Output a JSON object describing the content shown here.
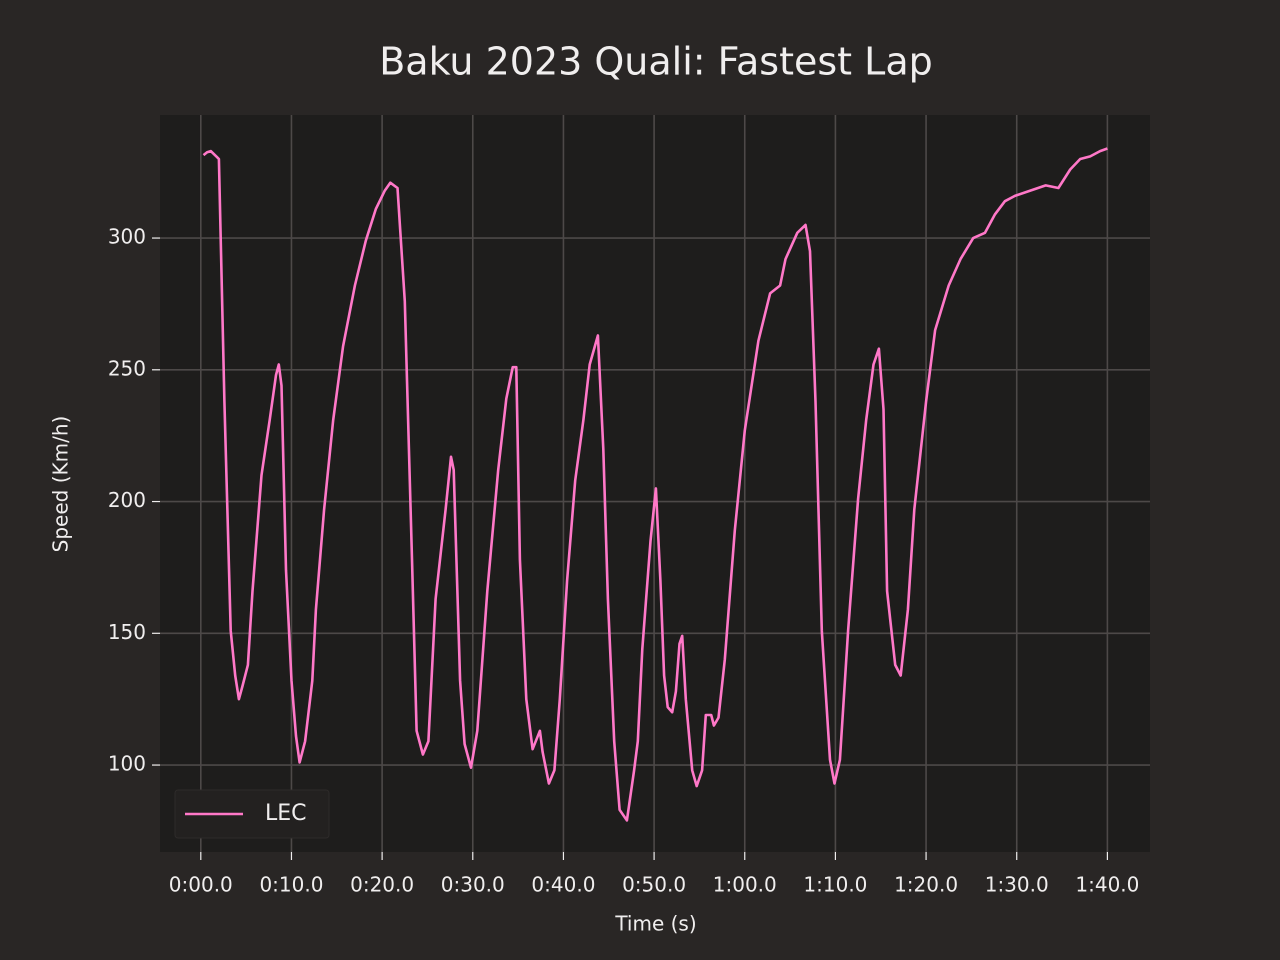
{
  "chart_data": {
    "type": "line",
    "title": "Baku 2023 Quali: Fastest Lap",
    "x_label": "Time (s)",
    "y_label": "Speed (Km/h)",
    "legend": "lower left",
    "grid": true,
    "xlim": [
      -4.5,
      104.7
    ],
    "ylim": [
      67,
      346.7
    ],
    "xticks": [
      {
        "value": 0,
        "label": "0:00.0"
      },
      {
        "value": 10,
        "label": "0:10.0"
      },
      {
        "value": 20,
        "label": "0:20.0"
      },
      {
        "value": 30,
        "label": "0:30.0"
      },
      {
        "value": 40,
        "label": "0:40.0"
      },
      {
        "value": 50,
        "label": "0:50.0"
      },
      {
        "value": 60,
        "label": "1:00.0"
      },
      {
        "value": 70,
        "label": "1:10.0"
      },
      {
        "value": 80,
        "label": "1:20.0"
      },
      {
        "value": 90,
        "label": "1:30.0"
      },
      {
        "value": 100,
        "label": "1:40.0"
      }
    ],
    "yticks": [
      100,
      150,
      200,
      250,
      300
    ],
    "series": [
      {
        "name": "LEC",
        "color": "#ff78c8",
        "x": [
          0.3,
          0.7,
          1.1,
          1.8,
          2.0,
          2.6,
          3.3,
          3.8,
          4.2,
          4.6,
          5.2,
          5.7,
          6.7,
          7.6,
          8.3,
          8.6,
          8.9,
          9.4,
          10.0,
          10.5,
          10.9,
          11.5,
          12.3,
          12.7,
          13.6,
          14.6,
          15.7,
          17.0,
          18.2,
          19.3,
          20.3,
          20.9,
          21.7,
          22.5,
          23.3,
          23.8,
          24.5,
          25.1,
          25.9,
          27.0,
          27.6,
          27.9,
          28.6,
          29.1,
          29.8,
          30.5,
          31.6,
          32.8,
          33.7,
          34.4,
          34.8,
          35.2,
          35.9,
          36.6,
          37.4,
          37.7,
          38.4,
          39.0,
          39.6,
          40.4,
          41.3,
          42.2,
          42.9,
          43.8,
          44.4,
          44.9,
          45.6,
          46.2,
          47.0,
          47.8,
          48.2,
          48.7,
          49.6,
          50.2,
          50.7,
          51.1,
          51.5,
          52.0,
          52.4,
          52.8,
          53.1,
          53.5,
          54.2,
          54.7,
          55.3,
          55.7,
          56.3,
          56.6,
          57.1,
          57.8,
          58.9,
          60.0,
          61.5,
          62.8,
          63.9,
          64.5,
          65.8,
          66.7,
          67.2,
          67.8,
          68.5,
          69.4,
          69.9,
          70.5,
          71.4,
          72.5,
          73.4,
          74.2,
          74.8,
          75.3,
          75.7,
          76.6,
          77.2,
          78.0,
          78.7,
          80.0,
          81.0,
          82.5,
          83.8,
          85.2,
          86.5,
          87.6,
          88.7,
          89.8,
          91.5,
          93.2,
          94.6,
          95.9,
          97.0,
          98.1,
          99.2,
          100.0
        ],
        "values": [
          331.5,
          332.6,
          333,
          330.7,
          330,
          238,
          151,
          134,
          125,
          130,
          138,
          166,
          210,
          231,
          248,
          252,
          244,
          174,
          132,
          111,
          101,
          109,
          132,
          159,
          197,
          231,
          259,
          282,
          299,
          311,
          318,
          321,
          319,
          276,
          178,
          113,
          104,
          109,
          163,
          197,
          217,
          212,
          132,
          108,
          99,
          113,
          166,
          212,
          239,
          251,
          251,
          178,
          125,
          106,
          113,
          105,
          93,
          98,
          125,
          170,
          208,
          231,
          252,
          263,
          220,
          163,
          109,
          83,
          79,
          98,
          109,
          144,
          185,
          205,
          170,
          134,
          122,
          120,
          128,
          146,
          149,
          125,
          98,
          92,
          98,
          119,
          119,
          115,
          118,
          140,
          189,
          227,
          261,
          279,
          282,
          292,
          302,
          305,
          295,
          238,
          151,
          102,
          93,
          102,
          151,
          201,
          231,
          252,
          258,
          235,
          166,
          138,
          134,
          159,
          197,
          238,
          265,
          282,
          292,
          300,
          302,
          309,
          314,
          316,
          318,
          320,
          319,
          326,
          330,
          331,
          333,
          334
        ]
      }
    ]
  }
}
